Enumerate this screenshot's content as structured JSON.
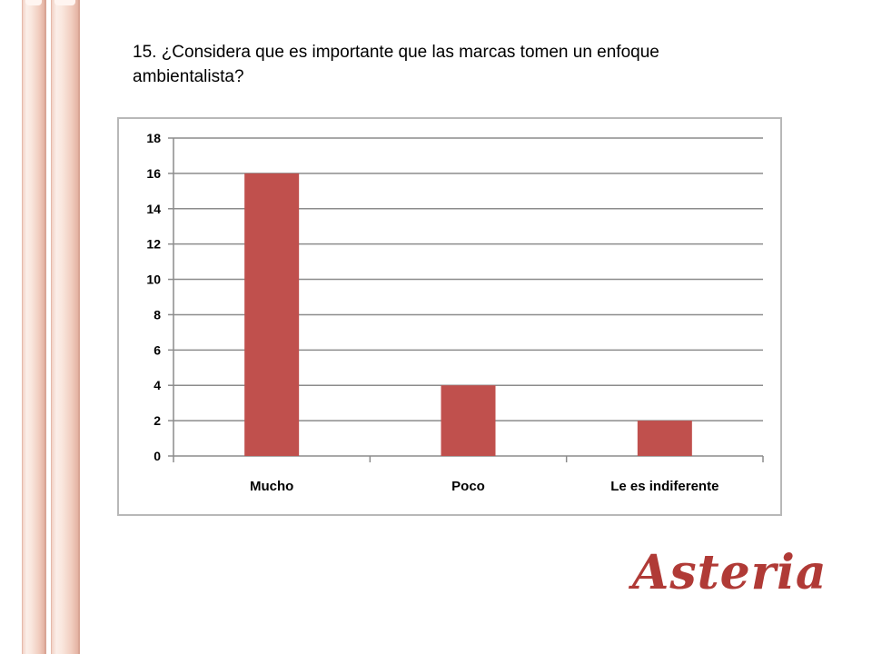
{
  "question": "15. ¿Considera que es importante que las marcas tomen un enfoque ambientalista?",
  "logo_text": "Asteria",
  "colors": {
    "bar": "#c0504d",
    "grid": "#8c8c8c",
    "logo": "#b03a36"
  },
  "chart_data": {
    "type": "bar",
    "categories": [
      "Mucho",
      "Poco",
      "Le es indiferente"
    ],
    "values": [
      16,
      4,
      2
    ],
    "title": "",
    "xlabel": "",
    "ylabel": "",
    "ylim": [
      0,
      18
    ],
    "yticks": [
      0,
      2,
      4,
      6,
      8,
      10,
      12,
      14,
      16,
      18
    ],
    "grid": true,
    "legend": "none"
  }
}
